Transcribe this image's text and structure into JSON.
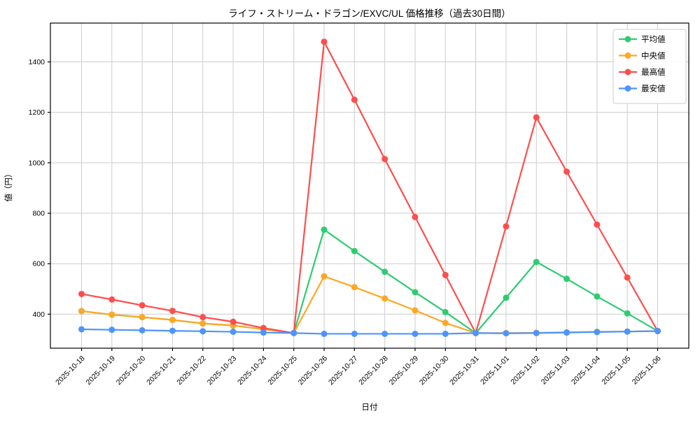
{
  "chart_data": {
    "type": "line",
    "title": "ライフ・ストリーム・ドラゴン/EXVC/UL 価格推移（過去30日間）",
    "xlabel": "日付",
    "ylabel": "値（円）",
    "x": [
      "2025-10-18",
      "2025-10-19",
      "2025-10-20",
      "2025-10-21",
      "2025-10-22",
      "2025-10-23",
      "2025-10-24",
      "2025-10-25",
      "2025-10-26",
      "2025-10-27",
      "2025-10-28",
      "2025-10-29",
      "2025-10-30",
      "2025-10-31",
      "2025-11-01",
      "2025-11-02",
      "2025-11-03",
      "2025-11-04",
      "2025-11-05",
      "2025-11-06"
    ],
    "series": [
      {
        "name": "平均値",
        "id": "average",
        "color": "#2ecc71",
        "values": [
          412,
          398,
          388,
          377,
          363,
          355,
          340,
          325,
          735,
          650,
          568,
          487,
          408,
          325,
          465,
          607,
          540,
          470,
          403,
          333
        ]
      },
      {
        "name": "中央値",
        "id": "median",
        "color": "#ffa726",
        "values": [
          412,
          398,
          388,
          377,
          363,
          355,
          340,
          325,
          550,
          507,
          462,
          415,
          365,
          325,
          325,
          326,
          328,
          330,
          331,
          333
        ]
      },
      {
        "name": "最高値",
        "id": "max",
        "color": "#ff4d4d",
        "values": [
          480,
          458,
          435,
          413,
          388,
          370,
          345,
          325,
          1480,
          1250,
          1015,
          785,
          555,
          325,
          748,
          1180,
          965,
          755,
          545,
          333
        ]
      },
      {
        "name": "最安値",
        "id": "min",
        "color": "#4d94ff",
        "values": [
          340,
          338,
          336,
          334,
          332,
          330,
          327,
          325,
          322,
          322,
          322,
          322,
          322,
          325,
          324,
          325,
          327,
          329,
          331,
          333
        ]
      }
    ],
    "yticks": [
      400,
      600,
      800,
      1000,
      1200,
      1400
    ],
    "ylim": [
      265,
      1554
    ],
    "grid": true,
    "legend_position": "upper right",
    "colors": {
      "grid": "#cccccc",
      "spine": "#000000",
      "legend_border": "#cccccc",
      "background": "#ffffff"
    }
  }
}
